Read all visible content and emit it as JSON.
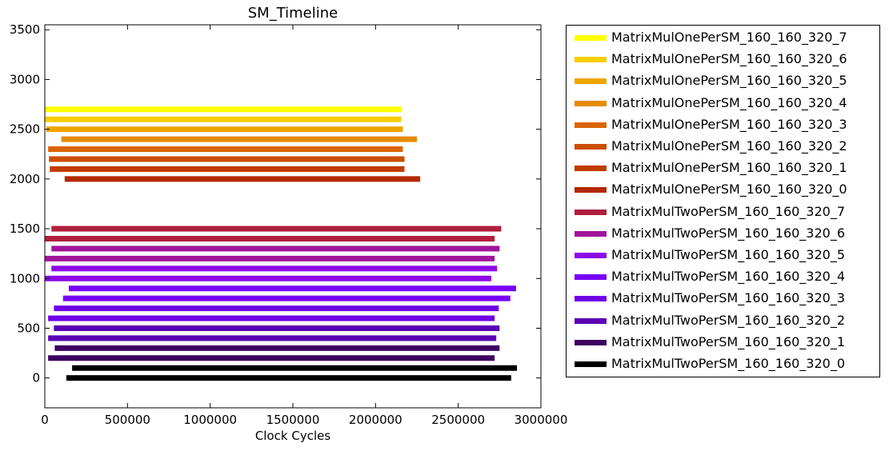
{
  "chart_data": {
    "type": "bar",
    "orientation": "horizontal-timeline",
    "title": "SM_Timeline",
    "xlabel": "Clock Cycles",
    "ylabel": "",
    "xlim": [
      0,
      3000000
    ],
    "ylim": [
      -300,
      3550
    ],
    "x_ticks": [
      0,
      500000,
      1000000,
      1500000,
      2000000,
      2500000,
      3000000
    ],
    "x_tick_labels": [
      "0",
      "500000",
      "1000000",
      "1500000",
      "2000000",
      "2500000",
      "3000000"
    ],
    "y_ticks": [
      0,
      500,
      1000,
      1500,
      2000,
      2500,
      3000,
      3500
    ],
    "y_tick_labels": [
      "0",
      "500",
      "1000",
      "1500",
      "2000",
      "2500",
      "3000",
      "3500"
    ],
    "grid": false,
    "legend_position": "outside-right",
    "series": [
      {
        "name": "MatrixMulTwoPerSM_160_160_320_0",
        "color": "#000000",
        "bars": [
          {
            "y": 0,
            "start": 130000,
            "end": 2820000
          },
          {
            "y": 100,
            "start": 165000,
            "end": 2855000
          }
        ]
      },
      {
        "name": "MatrixMulTwoPerSM_160_160_320_1",
        "color": "#3c0060",
        "bars": [
          {
            "y": 200,
            "start": 20000,
            "end": 2720000
          },
          {
            "y": 300,
            "start": 60000,
            "end": 2750000
          }
        ]
      },
      {
        "name": "MatrixMulTwoPerSM_160_160_320_2",
        "color": "#5a00b4",
        "bars": [
          {
            "y": 400,
            "start": 20000,
            "end": 2730000
          },
          {
            "y": 500,
            "start": 55000,
            "end": 2750000
          }
        ]
      },
      {
        "name": "MatrixMulTwoPerSM_160_160_320_3",
        "color": "#6e00e6",
        "bars": [
          {
            "y": 600,
            "start": 20000,
            "end": 2720000
          },
          {
            "y": 700,
            "start": 55000,
            "end": 2745000
          }
        ]
      },
      {
        "name": "MatrixMulTwoPerSM_160_160_320_4",
        "color": "#7800f8",
        "bars": [
          {
            "y": 800,
            "start": 110000,
            "end": 2815000
          },
          {
            "y": 900,
            "start": 145000,
            "end": 2850000
          }
        ]
      },
      {
        "name": "MatrixMulTwoPerSM_160_160_320_5",
        "color": "#8c0ae6",
        "bars": [
          {
            "y": 1000,
            "start": 0,
            "end": 2700000
          },
          {
            "y": 1100,
            "start": 40000,
            "end": 2735000
          }
        ]
      },
      {
        "name": "MatrixMulTwoPerSM_160_160_320_6",
        "color": "#a0149b",
        "bars": [
          {
            "y": 1200,
            "start": 0,
            "end": 2720000
          },
          {
            "y": 1300,
            "start": 40000,
            "end": 2750000
          }
        ]
      },
      {
        "name": "MatrixMulTwoPerSM_160_160_320_7",
        "color": "#b01e3c",
        "bars": [
          {
            "y": 1400,
            "start": 0,
            "end": 2720000
          },
          {
            "y": 1500,
            "start": 40000,
            "end": 2760000
          }
        ]
      },
      {
        "name": "MatrixMulOnePerSM_160_160_320_0",
        "color": "#b42800",
        "bars": [
          {
            "y": 2000,
            "start": 120000,
            "end": 2270000
          }
        ]
      },
      {
        "name": "MatrixMulOnePerSM_160_160_320_1",
        "color": "#c03c00",
        "bars": [
          {
            "y": 2100,
            "start": 30000,
            "end": 2175000
          }
        ]
      },
      {
        "name": "MatrixMulOnePerSM_160_160_320_2",
        "color": "#cc4e00",
        "bars": [
          {
            "y": 2200,
            "start": 25000,
            "end": 2175000
          }
        ]
      },
      {
        "name": "MatrixMulOnePerSM_160_160_320_3",
        "color": "#dc6400",
        "bars": [
          {
            "y": 2300,
            "start": 20000,
            "end": 2165000
          }
        ]
      },
      {
        "name": "MatrixMulOnePerSM_160_160_320_4",
        "color": "#e68a00",
        "bars": [
          {
            "y": 2400,
            "start": 100000,
            "end": 2250000
          }
        ]
      },
      {
        "name": "MatrixMulOnePerSM_160_160_320_5",
        "color": "#f0a500",
        "bars": [
          {
            "y": 2500,
            "start": 10000,
            "end": 2165000
          }
        ]
      },
      {
        "name": "MatrixMulOnePerSM_160_160_320_6",
        "color": "#f8cd00",
        "bars": [
          {
            "y": 2600,
            "start": 0,
            "end": 2155000
          }
        ]
      },
      {
        "name": "MatrixMulOnePerSM_160_160_320_7",
        "color": "#ffff00",
        "bars": [
          {
            "y": 2700,
            "start": 0,
            "end": 2160000
          }
        ]
      }
    ],
    "legend_order": [
      15,
      14,
      13,
      12,
      11,
      10,
      9,
      8,
      7,
      6,
      5,
      4,
      3,
      2,
      1,
      0
    ]
  }
}
